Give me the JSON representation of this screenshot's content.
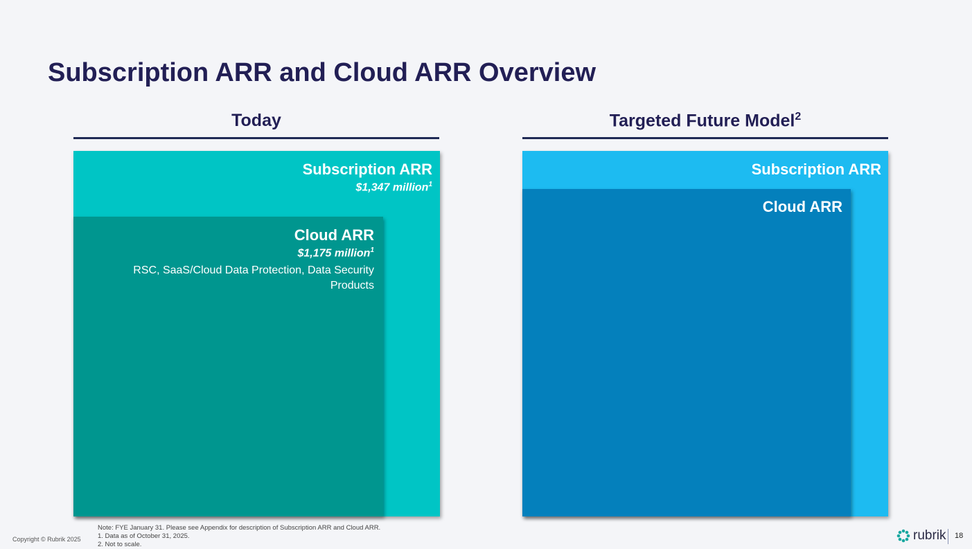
{
  "title": "Subscription ARR and Cloud ARR Overview",
  "today": {
    "heading": "Today",
    "outer": {
      "label": "Subscription ARR",
      "value": "$1,347 million",
      "footnote": "1"
    },
    "inner": {
      "label": "Cloud ARR",
      "value": "$1,175 million",
      "footnote": "1",
      "description": "RSC, SaaS/Cloud Data Protection, Data Security Products"
    }
  },
  "future": {
    "heading": "Targeted Future Model",
    "heading_footnote": "2",
    "outer": {
      "label": "Subscription ARR"
    },
    "inner": {
      "label": "Cloud ARR"
    }
  },
  "notes": [
    "Note:  FYE January 31.  Please see Appendix for description of Subscription ARR and Cloud ARR.",
    "1. Data as of October 31, 2025.",
    "2. Not to scale."
  ],
  "copyright": "Copyright © Rubrik 2025",
  "logo_text": "rubrik",
  "page_number": "18",
  "colors": {
    "title": "#221f55",
    "today_outer": "#00c5c5",
    "today_inner": "#00968f",
    "future_outer": "#1dbbf1",
    "future_inner": "#0480bc"
  }
}
